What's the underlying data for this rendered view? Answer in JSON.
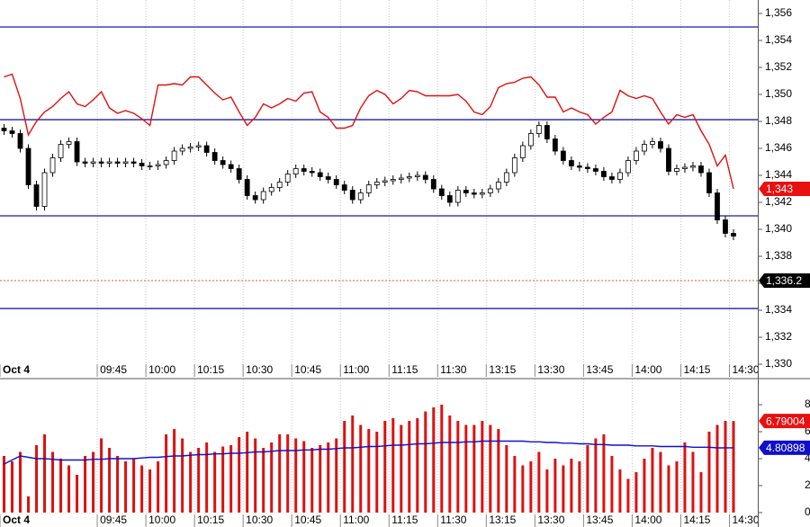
{
  "chart_data": [
    {
      "type": "candlestick",
      "xlim": [
        0,
        93.5
      ],
      "xticks": [
        {
          "value": 0,
          "label": "Oct 4"
        },
        {
          "value": 12,
          "label": "09:45"
        },
        {
          "value": 18,
          "label": "10:00"
        },
        {
          "value": 24,
          "label": "10:15"
        },
        {
          "value": 30,
          "label": "10:30"
        },
        {
          "value": 36,
          "label": "10:45"
        },
        {
          "value": 42,
          "label": "11:00"
        },
        {
          "value": 48,
          "label": "11:15"
        },
        {
          "value": 54,
          "label": "11:30"
        },
        {
          "value": 60,
          "label": "13:15"
        },
        {
          "value": 66,
          "label": "13:30"
        },
        {
          "value": 72,
          "label": "13:45"
        },
        {
          "value": 78,
          "label": "14:00"
        },
        {
          "value": 84,
          "label": "14:15"
        },
        {
          "value": 90,
          "label": "14:30"
        }
      ],
      "ylim": [
        1329,
        1357
      ],
      "yticks": [
        {
          "value": 1356,
          "label": "1,356"
        },
        {
          "value": 1354,
          "label": "1,354"
        },
        {
          "value": 1352,
          "label": "1,352"
        },
        {
          "value": 1350,
          "label": "1,350"
        },
        {
          "value": 1348,
          "label": "1,348"
        },
        {
          "value": 1346,
          "label": "1,346"
        },
        {
          "value": 1344,
          "label": "1,344"
        },
        {
          "value": 1342,
          "label": "1,342"
        },
        {
          "value": 1340,
          "label": "1,340"
        },
        {
          "value": 1338,
          "label": "1,338"
        },
        {
          "value": 1336,
          "label": "1,336"
        },
        {
          "value": 1334,
          "label": "1,334"
        },
        {
          "value": 1332,
          "label": "1,332"
        },
        {
          "value": 1330,
          "label": "1,330"
        }
      ],
      "grid": true,
      "up_color": "#ffffff",
      "down_color": "#000000",
      "open": [
        1347.5,
        1347.3,
        1347.1,
        1346.0,
        1343.3,
        1341.7,
        1344.2,
        1345.3,
        1346.3,
        1346.5,
        1345.0,
        1344.9,
        1345.0,
        1344.9,
        1345.0,
        1344.9,
        1345.0,
        1344.9,
        1344.7,
        1344.7,
        1344.8,
        1345.1,
        1345.8,
        1346.0,
        1346.1,
        1346.2,
        1345.7,
        1345.1,
        1344.8,
        1344.5,
        1343.7,
        1342.5,
        1342.2,
        1342.8,
        1343.1,
        1343.5,
        1344.1,
        1344.5,
        1344.3,
        1344.2,
        1343.9,
        1343.7,
        1343.3,
        1342.9,
        1342.2,
        1342.7,
        1343.3,
        1343.5,
        1343.6,
        1343.7,
        1343.8,
        1343.9,
        1344.0,
        1343.7,
        1343.0,
        1342.5,
        1342.0,
        1342.9,
        1342.7,
        1342.6,
        1342.7,
        1343.0,
        1343.5,
        1344.2,
        1345.3,
        1346.2,
        1347.1,
        1347.7,
        1346.7,
        1345.8,
        1345.1,
        1344.7,
        1344.6,
        1344.5,
        1344.3,
        1343.9,
        1343.7,
        1344.2,
        1345.1,
        1345.8,
        1346.3,
        1346.5,
        1346.0,
        1344.3,
        1344.5,
        1344.6,
        1344.7,
        1344.2,
        1342.7,
        1340.7,
        1339.7
      ],
      "high": [
        1347.8,
        1347.6,
        1347.4,
        1346.3,
        1343.6,
        1344.5,
        1345.6,
        1346.6,
        1346.8,
        1346.8,
        1345.3,
        1345.3,
        1345.3,
        1345.3,
        1345.3,
        1345.3,
        1345.3,
        1345.2,
        1345.0,
        1345.1,
        1345.4,
        1346.1,
        1346.3,
        1346.4,
        1346.5,
        1346.5,
        1346.0,
        1345.4,
        1345.1,
        1344.8,
        1344.0,
        1342.8,
        1343.1,
        1343.4,
        1343.8,
        1344.4,
        1344.8,
        1344.8,
        1344.6,
        1344.5,
        1344.2,
        1344.0,
        1343.6,
        1343.2,
        1343.0,
        1343.6,
        1343.8,
        1343.9,
        1344.0,
        1344.1,
        1344.2,
        1344.3,
        1344.3,
        1344.0,
        1343.3,
        1342.8,
        1343.2,
        1343.2,
        1343.0,
        1343.0,
        1343.3,
        1343.8,
        1344.5,
        1345.6,
        1346.5,
        1347.4,
        1348.0,
        1348.0,
        1347.0,
        1346.1,
        1345.4,
        1345.0,
        1344.9,
        1344.8,
        1344.6,
        1344.2,
        1344.5,
        1345.4,
        1346.1,
        1346.6,
        1346.8,
        1346.8,
        1346.3,
        1344.8,
        1344.9,
        1345.0,
        1345.0,
        1344.5,
        1343.0,
        1341.0,
        1340.0
      ],
      "low": [
        1347.0,
        1346.8,
        1345.7,
        1343.0,
        1341.4,
        1341.4,
        1343.9,
        1345.0,
        1346.0,
        1344.7,
        1344.6,
        1344.6,
        1344.6,
        1344.6,
        1344.6,
        1344.6,
        1344.6,
        1344.4,
        1344.4,
        1344.4,
        1344.5,
        1344.8,
        1345.5,
        1345.7,
        1345.8,
        1345.4,
        1344.8,
        1344.5,
        1344.2,
        1343.4,
        1342.2,
        1341.9,
        1341.9,
        1342.5,
        1342.8,
        1343.2,
        1343.8,
        1344.0,
        1343.9,
        1343.6,
        1343.4,
        1343.0,
        1342.6,
        1341.9,
        1341.9,
        1342.4,
        1343.0,
        1343.2,
        1343.3,
        1343.4,
        1343.5,
        1343.6,
        1343.4,
        1342.7,
        1342.2,
        1341.7,
        1341.7,
        1342.4,
        1342.3,
        1342.3,
        1342.4,
        1342.7,
        1343.2,
        1343.9,
        1345.0,
        1345.9,
        1346.8,
        1346.4,
        1345.5,
        1344.8,
        1344.4,
        1344.3,
        1344.2,
        1344.0,
        1343.6,
        1343.4,
        1343.4,
        1343.9,
        1344.8,
        1345.5,
        1346.0,
        1345.7,
        1344.0,
        1344.0,
        1344.2,
        1344.3,
        1343.9,
        1342.4,
        1340.4,
        1339.4,
        1339.2
      ],
      "close": [
        1347.3,
        1347.1,
        1346.0,
        1343.3,
        1341.7,
        1344.2,
        1345.3,
        1346.3,
        1346.5,
        1345.0,
        1344.9,
        1345.0,
        1344.9,
        1345.0,
        1344.9,
        1345.0,
        1344.9,
        1344.7,
        1344.7,
        1344.8,
        1345.1,
        1345.8,
        1346.0,
        1346.1,
        1346.2,
        1345.7,
        1345.1,
        1344.8,
        1344.5,
        1343.7,
        1342.5,
        1342.2,
        1342.8,
        1343.1,
        1343.5,
        1344.1,
        1344.5,
        1344.3,
        1344.2,
        1343.9,
        1343.7,
        1343.3,
        1342.9,
        1342.2,
        1342.7,
        1343.3,
        1343.5,
        1343.6,
        1343.7,
        1343.8,
        1343.9,
        1344.0,
        1343.7,
        1343.0,
        1342.5,
        1342.0,
        1342.9,
        1342.7,
        1342.6,
        1342.7,
        1343.0,
        1343.5,
        1344.2,
        1345.3,
        1346.2,
        1347.1,
        1347.7,
        1346.7,
        1345.8,
        1345.1,
        1344.7,
        1344.6,
        1344.5,
        1344.3,
        1343.9,
        1343.7,
        1344.2,
        1345.1,
        1345.8,
        1346.3,
        1346.5,
        1346.0,
        1344.3,
        1344.5,
        1344.6,
        1344.7,
        1344.2,
        1342.7,
        1340.7,
        1339.7,
        1339.5
      ],
      "series": [
        {
          "type": "line",
          "color": "#dd1111",
          "values": [
            1351.3,
            1351.5,
            1349.7,
            1347.0,
            1348.0,
            1348.7,
            1349.1,
            1349.7,
            1350.2,
            1349.3,
            1349.1,
            1349.6,
            1350.2,
            1349.0,
            1348.6,
            1348.8,
            1348.6,
            1348.2,
            1347.7,
            1350.7,
            1350.7,
            1350.8,
            1350.7,
            1351.3,
            1351.3,
            1350.7,
            1350.1,
            1349.6,
            1349.8,
            1348.7,
            1347.7,
            1348.3,
            1349.3,
            1349.0,
            1349.3,
            1349.7,
            1349.5,
            1350.1,
            1350.2,
            1348.7,
            1348.3,
            1347.5,
            1347.5,
            1347.7,
            1349.0,
            1349.9,
            1350.3,
            1350.0,
            1349.3,
            1349.7,
            1350.3,
            1350.2,
            1349.9,
            1349.9,
            1349.9,
            1349.9,
            1350.0,
            1349.5,
            1348.7,
            1348.5,
            1349.1,
            1350.5,
            1350.8,
            1350.9,
            1351.2,
            1351.3,
            1350.7,
            1349.8,
            1349.8,
            1348.7,
            1349.0,
            1348.7,
            1348.5,
            1347.8,
            1348.3,
            1348.7,
            1350.3,
            1349.9,
            1349.7,
            1349.9,
            1349.7,
            1348.7,
            1347.8,
            1348.5,
            1348.3,
            1348.5,
            1347.3,
            1346.3,
            1344.7,
            1345.5,
            1343.0
          ]
        }
      ],
      "hline_color": "#1c1ca0",
      "hlines": [
        1355,
        1348.13,
        1341,
        1334.13
      ],
      "markers": [
        {
          "value": 1343,
          "label": "1,343",
          "color": "#e81010"
        },
        {
          "value": 1336.2,
          "label": "1,336.2",
          "color": "#000000",
          "line_color": "#e05a30"
        }
      ]
    },
    {
      "type": "bar",
      "xlim": [
        0,
        93.5
      ],
      "xticks": [
        {
          "value": 0,
          "label": "Oct 4"
        },
        {
          "value": 12,
          "label": "09:45"
        },
        {
          "value": 18,
          "label": "10:00"
        },
        {
          "value": 24,
          "label": "10:15"
        },
        {
          "value": 30,
          "label": "10:30"
        },
        {
          "value": 36,
          "label": "10:45"
        },
        {
          "value": 42,
          "label": "11:00"
        },
        {
          "value": 48,
          "label": "11:15"
        },
        {
          "value": 54,
          "label": "11:30"
        },
        {
          "value": 60,
          "label": "13:15"
        },
        {
          "value": 66,
          "label": "13:30"
        },
        {
          "value": 72,
          "label": "13:45"
        },
        {
          "value": 78,
          "label": "14:00"
        },
        {
          "value": 84,
          "label": "14:15"
        },
        {
          "value": 90,
          "label": "14:30"
        }
      ],
      "ylim": [
        -1.07,
        9.87
      ],
      "yticks": [
        0,
        2,
        4,
        6,
        8
      ],
      "grid": true,
      "series": [
        {
          "type": "bar",
          "color": "#dd1111",
          "values": [
            4.2,
            3.8,
            4.5,
            1.2,
            5.0,
            5.8,
            4.5,
            4.0,
            3.5,
            2.8,
            4.2,
            4.5,
            5.5,
            4.8,
            4.2,
            3.8,
            4.0,
            3.5,
            3.2,
            3.8,
            5.8,
            6.2,
            5.5,
            4.5,
            4.8,
            5.2,
            4.5,
            4.9,
            5.0,
            5.6,
            6.0,
            5.5,
            4.8,
            5.2,
            5.8,
            5.8,
            5.5,
            5.3,
            4.8,
            5.0,
            5.2,
            5.5,
            6.8,
            7.2,
            6.5,
            6.2,
            6.0,
            6.8,
            7.0,
            6.5,
            6.8,
            7.0,
            7.5,
            7.8,
            8.0,
            7.2,
            6.8,
            6.5,
            6.5,
            6.8,
            6.5,
            6.2,
            5.0,
            4.2,
            3.5,
            3.8,
            4.5,
            3.2,
            4.0,
            3.5,
            4.0,
            3.8,
            5.0,
            5.5,
            5.8,
            4.2,
            3.2,
            2.5,
            3.0,
            4.0,
            4.8,
            4.5,
            3.5,
            3.8,
            5.2,
            4.5,
            3.0,
            6.0,
            6.5,
            6.8,
            6.79
          ]
        },
        {
          "type": "line",
          "color": "#1010c8",
          "values": [
            3.6,
            3.9,
            4.2,
            4.1,
            4.0,
            4.0,
            3.95,
            3.9,
            3.9,
            3.9,
            3.9,
            3.95,
            3.95,
            4.0,
            4.0,
            4.0,
            4.0,
            4.05,
            4.1,
            4.1,
            4.15,
            4.2,
            4.2,
            4.25,
            4.3,
            4.3,
            4.35,
            4.35,
            4.4,
            4.4,
            4.45,
            4.5,
            4.5,
            4.55,
            4.6,
            4.6,
            4.6,
            4.65,
            4.65,
            4.7,
            4.7,
            4.75,
            4.8,
            4.8,
            4.85,
            4.9,
            4.9,
            4.95,
            5.0,
            5.0,
            5.05,
            5.1,
            5.1,
            5.15,
            5.2,
            5.2,
            5.2,
            5.25,
            5.25,
            5.3,
            5.3,
            5.3,
            5.3,
            5.3,
            5.3,
            5.25,
            5.25,
            5.2,
            5.2,
            5.15,
            5.15,
            5.1,
            5.1,
            5.05,
            5.05,
            5.0,
            5.0,
            5.0,
            4.95,
            4.95,
            4.95,
            4.9,
            4.9,
            4.9,
            4.9,
            4.85,
            4.85,
            4.85,
            4.8,
            4.8,
            4.81
          ]
        }
      ],
      "markers": [
        {
          "value": 6.79004,
          "color": "#e81010"
        },
        {
          "value": 4.80898,
          "color": "#1010c8"
        }
      ]
    }
  ]
}
